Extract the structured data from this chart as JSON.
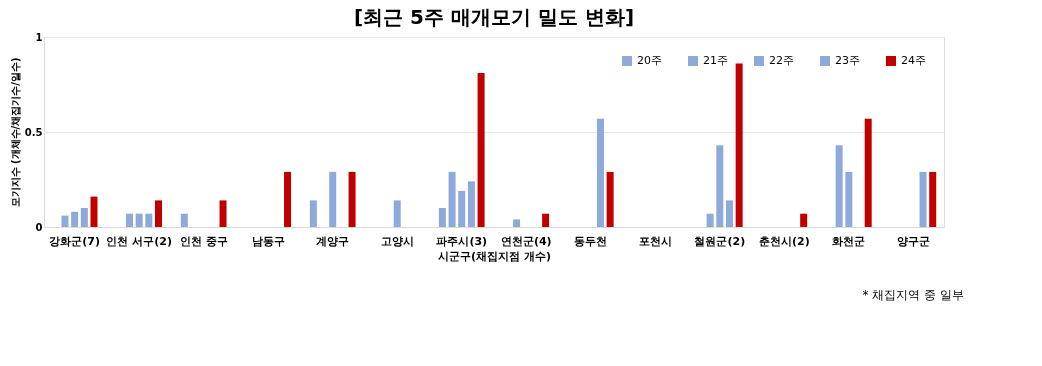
{
  "chart_data": {
    "type": "bar",
    "title": "[최근 5주 매개모기 밀도 변화]",
    "xlabel": "시군구(채집지점 개수)",
    "ylabel": "모기지수 (개체수/채집기수/일수)",
    "categories": [
      "강화군(7)",
      "인천 서구(2)",
      "인천 중구",
      "남동구",
      "계양구",
      "고양시",
      "파주시(3)",
      "연천군(4)",
      "동두천",
      "포천시",
      "철원군(2)",
      "춘천시(2)",
      "화천군",
      "양구군"
    ],
    "series": [
      {
        "name": "20주",
        "color": "#8eaadb",
        "values": [
          null,
          null,
          0.07,
          null,
          0.14,
          null,
          0.1,
          null,
          null,
          null,
          null,
          null,
          null,
          null
        ]
      },
      {
        "name": "21주",
        "color": "#8eaadb",
        "values": [
          0.06,
          0.07,
          null,
          null,
          null,
          null,
          0.29,
          0.04,
          null,
          null,
          0.07,
          null,
          0.43,
          null
        ]
      },
      {
        "name": "22주",
        "color": "#8eaadb",
        "values": [
          0.08,
          0.07,
          null,
          null,
          0.29,
          0.14,
          0.19,
          null,
          null,
          null,
          0.43,
          null,
          0.29,
          null
        ]
      },
      {
        "name": "23주",
        "color": "#8eaadb",
        "values": [
          0.1,
          0.07,
          null,
          null,
          null,
          null,
          0.24,
          null,
          0.57,
          null,
          0.14,
          null,
          null,
          0.29
        ]
      },
      {
        "name": "24주",
        "color": "#c00000",
        "values": [
          0.16,
          0.14,
          0.14,
          0.29,
          0.29,
          null,
          0.81,
          0.07,
          0.29,
          null,
          0.86,
          0.07,
          0.57,
          0.29
        ]
      }
    ],
    "ylim": [
      0,
      1
    ],
    "yticks": [
      0,
      0.5,
      1
    ],
    "grid": "y",
    "legend": "top right",
    "annotations": [
      "* 채집지역 중 일부"
    ]
  }
}
